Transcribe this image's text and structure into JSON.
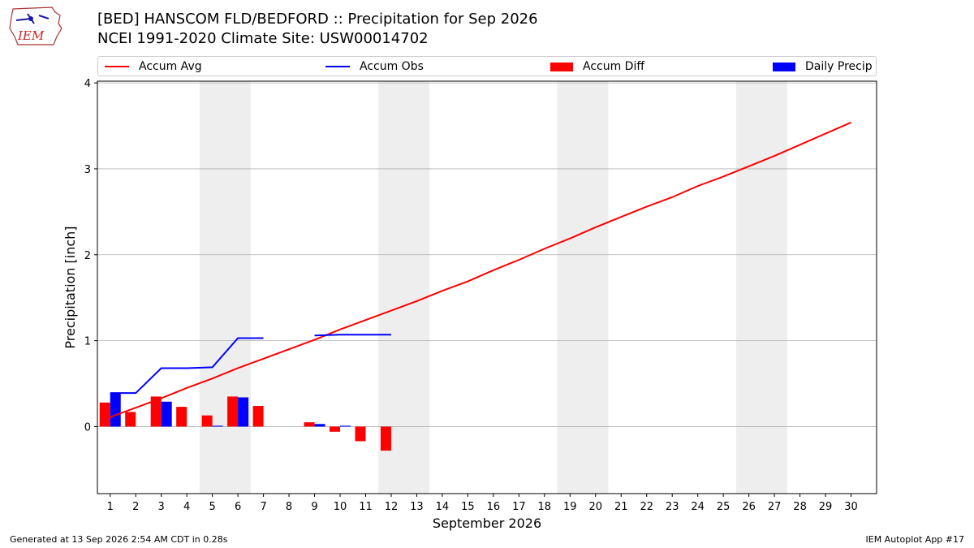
{
  "header": {
    "logo_text": "IEM",
    "title": "[BED] HANSCOM FLD/BEDFORD :: Precipitation for Sep 2026",
    "subtitle": "NCEI 1991-2020 Climate Site: USW00014702"
  },
  "footer": {
    "generated": "Generated at 13 Sep 2026 2:54 AM CDT in 0.28s",
    "app": "IEM Autoplot App #17"
  },
  "chart_data": {
    "type": "bar",
    "title": "[BED] HANSCOM FLD/BEDFORD :: Precipitation for Sep 2026",
    "subtitle": "NCEI 1991-2020 Climate Site: USW00014702",
    "xlabel": "September 2026",
    "ylabel": "Precipitation [inch]",
    "xlim": [
      0.5,
      31
    ],
    "ylim": [
      -0.78,
      4.02
    ],
    "yticks": [
      0,
      1,
      2,
      3,
      4
    ],
    "xticks": [
      1,
      2,
      3,
      4,
      5,
      6,
      7,
      8,
      9,
      10,
      11,
      12,
      13,
      14,
      15,
      16,
      17,
      18,
      19,
      20,
      21,
      22,
      23,
      24,
      25,
      26,
      27,
      28,
      29,
      30
    ],
    "grid": "horizontal",
    "legend_position": "top",
    "weekend_shading": [
      [
        4.5,
        6.5
      ],
      [
        11.5,
        13.5
      ],
      [
        18.5,
        20.5
      ],
      [
        25.5,
        27.5
      ]
    ],
    "colors": {
      "accum_avg": "#ff0000",
      "accum_obs": "#0000ff",
      "accum_diff": "#ff0000",
      "daily_precip": "#0000ff",
      "weekend": "#eeeeee",
      "grid": "#b0b0b0"
    },
    "series": [
      {
        "name": "Accum Avg",
        "type": "line",
        "x": [
          1,
          2,
          3,
          4,
          5,
          6,
          7,
          8,
          9,
          10,
          11,
          12,
          13,
          14,
          15,
          16,
          17,
          18,
          19,
          20,
          21,
          22,
          23,
          24,
          25,
          26,
          27,
          28,
          29,
          30
        ],
        "values": [
          0.11,
          0.22,
          0.33,
          0.45,
          0.56,
          0.68,
          0.79,
          0.9,
          1.01,
          1.13,
          1.24,
          1.35,
          1.46,
          1.58,
          1.69,
          1.82,
          1.94,
          2.07,
          2.19,
          2.32,
          2.44,
          2.56,
          2.67,
          2.8,
          2.91,
          3.03,
          3.15,
          3.28,
          3.41,
          3.54
        ]
      },
      {
        "name": "Accum Obs",
        "type": "line",
        "segments": [
          {
            "x": [
              1,
              2,
              3,
              4,
              5,
              6,
              7
            ],
            "values": [
              0.39,
              0.39,
              0.68,
              0.68,
              0.69,
              1.03,
              1.03
            ]
          },
          {
            "x": [
              9,
              10,
              11,
              12
            ],
            "values": [
              1.06,
              1.07,
              1.07,
              1.07
            ]
          }
        ]
      },
      {
        "name": "Accum Diff",
        "type": "bar",
        "x": [
          1,
          2,
          3,
          4,
          5,
          6,
          7,
          9,
          10,
          11,
          12
        ],
        "values": [
          0.28,
          0.17,
          0.35,
          0.23,
          0.13,
          0.35,
          0.24,
          0.05,
          -0.06,
          -0.17,
          -0.28
        ]
      },
      {
        "name": "Daily Precip",
        "type": "bar",
        "x": [
          1,
          3,
          5,
          6,
          9,
          10
        ],
        "values": [
          0.39,
          0.29,
          0.01,
          0.34,
          0.03,
          0.01
        ]
      }
    ]
  }
}
